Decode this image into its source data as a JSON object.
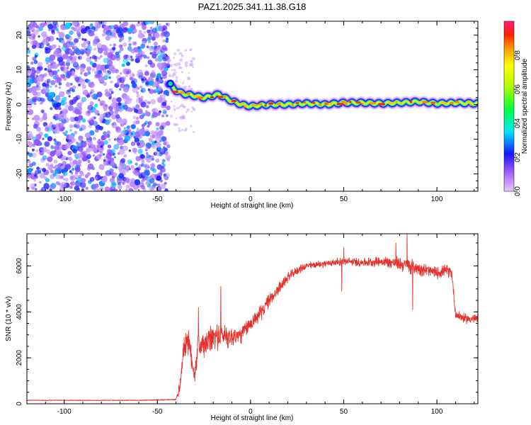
{
  "title": "PAZ1.2025.341.11.38.G18",
  "chart_data": [
    {
      "type": "heatmap",
      "xlabel": "Height of straight line (km)",
      "ylabel": "Frequency (Hz)",
      "xlim": [
        -120,
        122
      ],
      "ylim": [
        -25,
        24
      ],
      "xticks": [
        -100,
        -50,
        0,
        50,
        100
      ],
      "yticks": [
        -20,
        -10,
        0,
        10,
        20
      ],
      "noise_region": {
        "x": [
          -120,
          -44
        ],
        "y": [
          -25,
          24
        ],
        "amplitude_range": [
          0.05,
          0.35
        ]
      },
      "ridge": {
        "description": "Dominant frequency ridge",
        "x": [
          -44,
          -42,
          -40,
          -38,
          -35,
          -30,
          -25,
          -20,
          -17,
          -14,
          -10,
          -5,
          0,
          10,
          20,
          30,
          40,
          50,
          60,
          70,
          80,
          90,
          100,
          110,
          122
        ],
        "freq": [
          6,
          5,
          4,
          3.5,
          3,
          2.5,
          2,
          2.5,
          3,
          2,
          1,
          0,
          -0.5,
          0,
          0,
          0.3,
          0,
          0.5,
          0.5,
          0.3,
          0.5,
          0.8,
          0.3,
          0.5,
          0.3
        ]
      },
      "colorbar": {
        "label": "Normalized spectral amplitude",
        "range": [
          0.0,
          1.0
        ],
        "ticks": [
          0.0,
          0.2,
          0.4,
          0.6,
          0.8
        ]
      }
    },
    {
      "type": "line",
      "xlabel": "Height of straight line (km)",
      "ylabel": "SNR (10 * v/v)",
      "xlim": [
        -120,
        122
      ],
      "ylim": [
        0,
        7400
      ],
      "xticks": [
        -100,
        -50,
        0,
        50,
        100
      ],
      "yticks": [
        0,
        2000,
        4000,
        6000
      ],
      "color": "#e8302a",
      "series": [
        {
          "name": "SNR",
          "envelope_x": [
            -120,
            -60,
            -40,
            -38,
            -36,
            -34,
            -32,
            -30,
            -28,
            -25,
            -20,
            -15,
            -10,
            -5,
            0,
            5,
            10,
            15,
            20,
            25,
            30,
            40,
            50,
            60,
            70,
            80,
            85,
            90,
            100,
            105,
            108,
            110,
            115,
            122
          ],
          "envelope_snr": [
            150,
            150,
            180,
            700,
            2300,
            2900,
            2100,
            1300,
            2600,
            2500,
            2900,
            3000,
            2900,
            3000,
            3500,
            3900,
            4500,
            5000,
            5500,
            5800,
            6000,
            6100,
            6200,
            6150,
            6200,
            6100,
            6000,
            5900,
            5700,
            5800,
            5700,
            3900,
            3700,
            3700
          ],
          "noise_amplitude": [
            20,
            20,
            30,
            400,
            600,
            700,
            700,
            600,
            700,
            700,
            700,
            650,
            550,
            450,
            400,
            400,
            350,
            300,
            250,
            200,
            180,
            180,
            200,
            220,
            250,
            350,
            400,
            350,
            300,
            300,
            300,
            250,
            250,
            250
          ],
          "spikes": [
            {
              "x": -28,
              "snr": 4200
            },
            {
              "x": -16,
              "snr": 5100
            },
            {
              "x": 50,
              "snr": 6800
            },
            {
              "x": 78,
              "snr": 7000
            },
            {
              "x": 84,
              "snr": 7450
            },
            {
              "x": 87,
              "snr": 4100
            },
            {
              "x": 49,
              "snr": 4900
            }
          ]
        }
      ]
    }
  ]
}
